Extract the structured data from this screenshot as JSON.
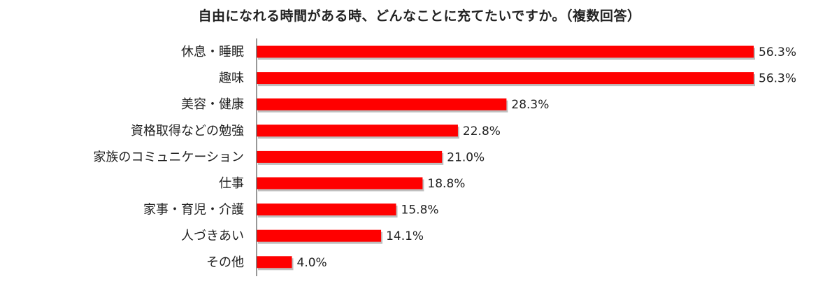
{
  "chart_data": {
    "type": "bar",
    "orientation": "horizontal",
    "title": "自由になれる時間がある時、どんなことに充てたいですか。（複数回答）",
    "categories": [
      "休息・睡眠",
      "趣味",
      "美容・健康",
      "資格取得などの勉強",
      "家族のコミュニケーション",
      "仕事",
      "家事・育児・介護",
      "人づきあい",
      "その他"
    ],
    "values": [
      56.3,
      56.3,
      28.3,
      22.8,
      21.0,
      18.8,
      15.8,
      14.1,
      4.0
    ],
    "value_labels": [
      "56.3%",
      "56.3%",
      "28.3%",
      "22.8%",
      "21.0%",
      "18.8%",
      "15.8%",
      "14.1%",
      "4.0%"
    ],
    "xlim": [
      0,
      56.3
    ],
    "grid": false,
    "legend": "none",
    "bar_color": "#ff0000",
    "shadow_color": "#8a8a8a",
    "axis_color": "#555555"
  }
}
